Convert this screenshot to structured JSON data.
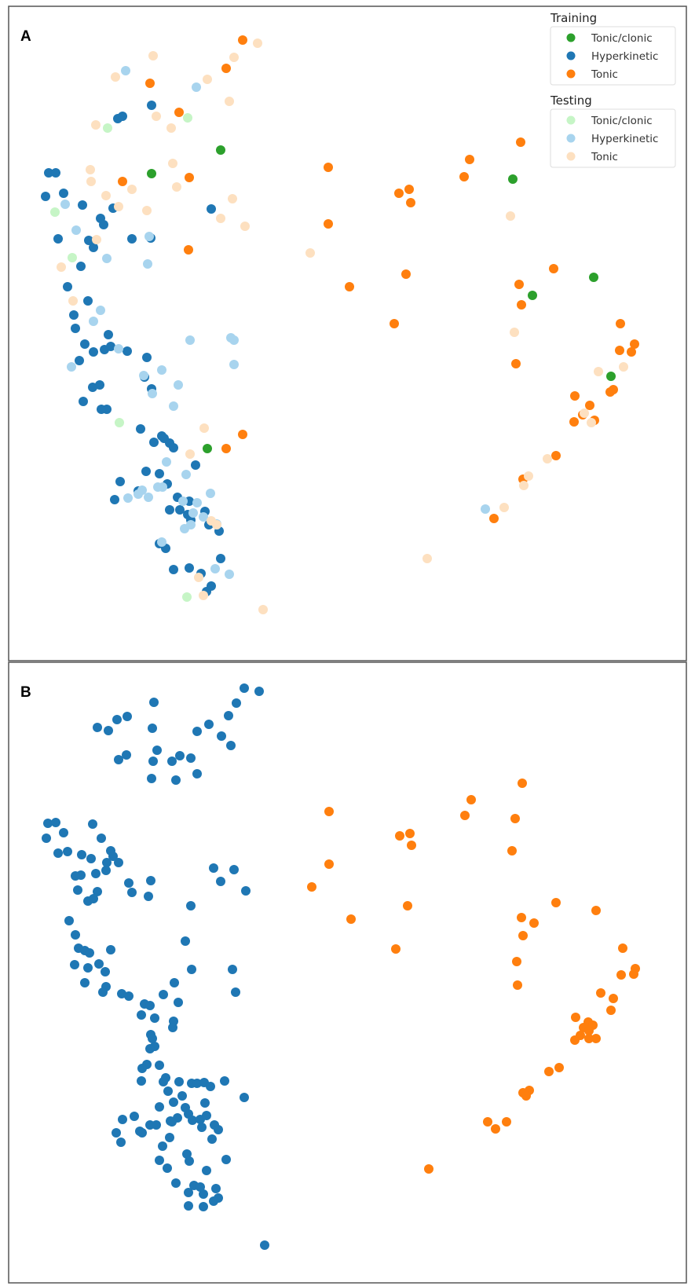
{
  "chart_data": [
    {
      "type": "scatter",
      "panel_label": "A",
      "title": "",
      "xlabel": "",
      "ylabel": "",
      "grid": false,
      "legend_position": "top-right",
      "legend_groups": [
        {
          "title": "Training",
          "entries": [
            {
              "label": "Tonic/clonic",
              "color": "#2ca02c"
            },
            {
              "label": "Hyperkinetic",
              "color": "#1f77b4"
            },
            {
              "label": "Tonic",
              "color": "#ff7f0e"
            }
          ]
        },
        {
          "title": "Testing",
          "entries": [
            {
              "label": "Tonic/clonic",
              "color": "#c6f5c6"
            },
            {
              "label": "Hyperkinetic",
              "color": "#a8d4ee"
            },
            {
              "label": "Tonic",
              "color": "#fde0c0"
            }
          ]
        }
      ],
      "xlim": [
        0,
        830
      ],
      "ylim": [
        0,
        795
      ],
      "series": [
        {
          "group": "Training",
          "label": "Tonic/clonic",
          "color": "#2ca02c",
          "x": [
            270,
            182,
            642,
            745,
            667,
            767,
            253
          ],
          "y": [
            183,
            213,
            220,
            345,
            368,
            471,
            563
          ]
        },
        {
          "group": "Training",
          "label": "Hyperkinetic",
          "color": "#1f77b4",
          "x": [
            51,
            60,
            47,
            70,
            94,
            117,
            133,
            102,
            121,
            108,
            63,
            92,
            157,
            181,
            258,
            75,
            101,
            83,
            85,
            108,
            127,
            97,
            122,
            90,
            116,
            107,
            95,
            125,
            118,
            130,
            151,
            176,
            182,
            173,
            195,
            198,
            205,
            185,
            210,
            168,
            142,
            135,
            165,
            175,
            192,
            202,
            215,
            230,
            238,
            250,
            228,
            205,
            218,
            232,
            255,
            268,
            192,
            200,
            210,
            230,
            245,
            252,
            258,
            270,
            139,
            145,
            182
          ],
          "y": [
            212,
            212,
            242,
            238,
            253,
            270,
            257,
            298,
            278,
            307,
            296,
            331,
            296,
            295,
            258,
            357,
            375,
            393,
            410,
            440,
            418,
            430,
            437,
            451,
            482,
            485,
            503,
            513,
            513,
            433,
            439,
            447,
            487,
            472,
            547,
            550,
            556,
            555,
            562,
            538,
            605,
            628,
            617,
            592,
            595,
            608,
            625,
            630,
            584,
            643,
            647,
            641,
            641,
            654,
            660,
            668,
            684,
            690,
            717,
            715,
            722,
            745,
            738,
            703,
            143,
            140,
            126
          ]
        },
        {
          "group": "Training",
          "label": "Tonic",
          "color": "#ff7f0e",
          "x": [
            298,
            277,
            180,
            217,
            145,
            230,
            229,
            407,
            497,
            510,
            512,
            407,
            587,
            580,
            652,
            506,
            434,
            491,
            694,
            650,
            653,
            646,
            779,
            778,
            793,
            797,
            770,
            766,
            721,
            720,
            740,
            746,
            731,
            697,
            655,
            618,
            298,
            277
          ],
          "y": [
            43,
            79,
            98,
            135,
            223,
            218,
            310,
            205,
            238,
            233,
            250,
            277,
            195,
            217,
            173,
            341,
            357,
            404,
            334,
            354,
            380,
            455,
            404,
            438,
            440,
            430,
            488,
            491,
            496,
            529,
            508,
            527,
            520,
            572,
            602,
            652,
            545,
            563
          ]
        },
        {
          "group": "Testing",
          "label": "Tonic/clonic",
          "color": "#c6f5c6",
          "x": [
            126,
            228,
            59,
            81,
            141,
            227
          ],
          "y": [
            155,
            142,
            262,
            320,
            530,
            752
          ]
        },
        {
          "group": "Testing",
          "label": "Hyperkinetic",
          "color": "#a8d4ee",
          "x": [
            149,
            239,
            72,
            86,
            125,
            179,
            177,
            117,
            108,
            140,
            80,
            283,
            287,
            287,
            231,
            216,
            195,
            172,
            183,
            210,
            201,
            226,
            196,
            190,
            178,
            165,
            152,
            170,
            222,
            240,
            257,
            235,
            232,
            224,
            248,
            265,
            263,
            281,
            195,
            607
          ],
          "y": [
            82,
            103,
            252,
            285,
            321,
            293,
            328,
            387,
            401,
            436,
            459,
            422,
            425,
            456,
            425,
            482,
            463,
            470,
            493,
            509,
            580,
            596,
            612,
            612,
            625,
            621,
            626,
            616,
            630,
            632,
            620,
            645,
            660,
            665,
            650,
            659,
            716,
            723,
            682,
            640
          ]
        },
        {
          "group": "Testing",
          "label": "Tonic",
          "color": "#fde0c0",
          "x": [
            317,
            287,
            253,
            184,
            136,
            111,
            207,
            188,
            281,
            209,
            214,
            105,
            124,
            104,
            157,
            140,
            176,
            285,
            270,
            301,
            112,
            82,
            67,
            384,
            639,
            644,
            751,
            783,
            733,
            742,
            686,
            662,
            656,
            631,
            533,
            249,
            258,
            231,
            265,
            242,
            248,
            324
          ],
          "y": [
            47,
            65,
            93,
            63,
            90,
            151,
            155,
            140,
            121,
            200,
            230,
            223,
            241,
            208,
            233,
            255,
            260,
            245,
            270,
            280,
            297,
            375,
            332,
            314,
            267,
            415,
            465,
            459,
            518,
            530,
            576,
            598,
            610,
            638,
            703,
            537,
            655,
            570,
            660,
            727,
            750,
            768
          ]
        }
      ]
    },
    {
      "type": "scatter",
      "panel_label": "B",
      "title": "",
      "xlabel": "",
      "ylabel": "",
      "grid": false,
      "xlim": [
        0,
        830
      ],
      "ylim": [
        0,
        780
      ],
      "series": [
        {
          "color": "#1f77b4",
          "x": [
            300,
            319,
            290,
            280,
            255,
            240,
            185,
            183,
            151,
            138,
            127,
            113,
            140,
            150,
            189,
            208,
            218,
            232,
            184,
            182,
            283,
            271,
            240,
            213,
            50,
            60,
            48,
            70,
            75,
            107,
            118,
            130,
            125,
            105,
            92,
            93,
            63,
            85,
            88,
            101,
            113,
            111,
            124,
            108,
            133,
            140,
            157,
            153,
            181,
            178,
            261,
            287,
            302,
            270,
            232,
            77,
            85,
            89,
            97,
            101,
            103,
            115,
            123,
            124,
            84,
            97,
            120,
            130,
            144,
            153,
            169,
            173,
            180,
            186,
            225,
            233,
            285,
            289,
            211,
            216,
            197,
            210,
            209,
            181,
            183,
            186,
            180,
            176,
            170,
            192,
            197,
            203,
            200,
            217,
            221,
            233,
            240,
            249,
            257,
            275,
            300,
            169,
            192,
            210,
            229,
            250,
            206,
            215,
            234,
            244,
            252,
            262,
            267,
            145,
            160,
            137,
            143,
            167,
            170,
            205,
            196,
            180,
            188,
            208,
            225,
            246,
            259,
            192,
            202,
            227,
            230,
            252,
            277,
            213,
            229,
            236,
            248,
            267,
            264,
            244,
            261,
            229,
            248,
            326
          ],
          "y": [
            33,
            37,
            52,
            68,
            79,
            88,
            51,
            84,
            69,
            73,
            87,
            83,
            124,
            118,
            112,
            126,
            119,
            122,
            126,
            148,
            106,
            94,
            142,
            150,
            205,
            204,
            224,
            217,
            241,
            206,
            224,
            240,
            255,
            250,
            271,
            245,
            243,
            272,
            290,
            304,
            292,
            269,
            265,
            301,
            247,
            255,
            293,
            281,
            278,
            298,
            262,
            264,
            291,
            279,
            310,
            329,
            347,
            364,
            367,
            389,
            370,
            384,
            394,
            413,
            385,
            408,
            420,
            366,
            422,
            425,
            449,
            435,
            437,
            453,
            355,
            391,
            391,
            420,
            408,
            433,
            423,
            457,
            465,
            474,
            479,
            489,
            492,
            512,
            517,
            513,
            534,
            546,
            529,
            534,
            552,
            536,
            536,
            535,
            540,
            533,
            554,
            533,
            566,
            560,
            575,
            561,
            584,
            580,
            583,
            582,
            577,
            589,
            595,
            582,
            578,
            599,
            611,
            597,
            599,
            605,
            616,
            589,
            589,
            585,
            567,
            592,
            607,
            634,
            644,
            626,
            635,
            647,
            633,
            663,
            675,
            666,
            677,
            682,
            670,
            668,
            686,
            692,
            693,
            742
          ]
        },
        {
          "color": "#ff7f0e",
          "x": [
            654,
            589,
            581,
            645,
            408,
            498,
            511,
            513,
            641,
            408,
            386,
            436,
            508,
            697,
            653,
            669,
            748,
            655,
            493,
            647,
            782,
            780,
            798,
            796,
            648,
            754,
            770,
            767,
            722,
            738,
            744,
            732,
            739,
            728,
            721,
            739,
            748,
            701,
            688,
            655,
            663,
            659,
            610,
            620,
            634,
            535
          ],
          "y": [
            154,
            175,
            195,
            199,
            190,
            221,
            218,
            233,
            240,
            257,
            286,
            327,
            310,
            306,
            325,
            332,
            316,
            348,
            365,
            381,
            364,
            398,
            390,
            397,
            411,
            421,
            428,
            443,
            452,
            458,
            462,
            465,
            469,
            475,
            481,
            479,
            479,
            516,
            521,
            548,
            545,
            552,
            585,
            594,
            585,
            645
          ]
        }
      ]
    }
  ]
}
